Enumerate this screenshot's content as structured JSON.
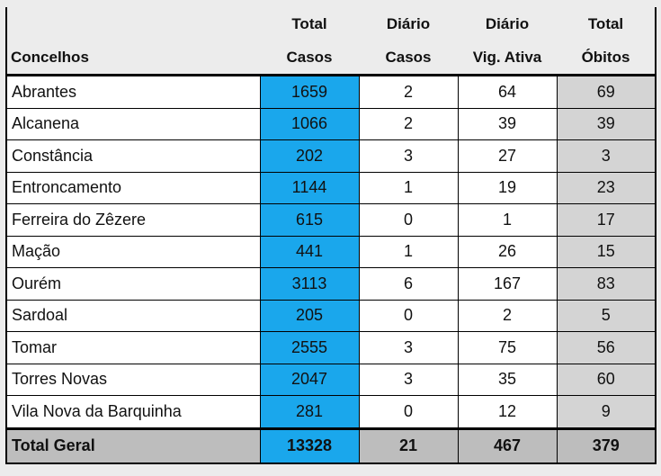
{
  "headers": {
    "row1": [
      "",
      "Total",
      "Diário",
      "Diário",
      "Total"
    ],
    "row2": [
      "Concelhos",
      "Casos",
      "Casos",
      "Vig. Ativa",
      "Óbitos"
    ]
  },
  "rows": [
    {
      "concelho": "Abrantes",
      "total_casos": "1659",
      "diario_casos": "2",
      "diario_vig": "64",
      "total_obitos": "69"
    },
    {
      "concelho": "Alcanena",
      "total_casos": "1066",
      "diario_casos": "2",
      "diario_vig": "39",
      "total_obitos": "39"
    },
    {
      "concelho": "Constância",
      "total_casos": "202",
      "diario_casos": "3",
      "diario_vig": "27",
      "total_obitos": "3"
    },
    {
      "concelho": "Entroncamento",
      "total_casos": "1144",
      "diario_casos": "1",
      "diario_vig": "19",
      "total_obitos": "23"
    },
    {
      "concelho": "Ferreira do Zêzere",
      "total_casos": "615",
      "diario_casos": "0",
      "diario_vig": "1",
      "total_obitos": "17"
    },
    {
      "concelho": "Mação",
      "total_casos": "441",
      "diario_casos": "1",
      "diario_vig": "26",
      "total_obitos": "15"
    },
    {
      "concelho": "Ourém",
      "total_casos": "3113",
      "diario_casos": "6",
      "diario_vig": "167",
      "total_obitos": "83"
    },
    {
      "concelho": "Sardoal",
      "total_casos": "205",
      "diario_casos": "0",
      "diario_vig": "2",
      "total_obitos": "5"
    },
    {
      "concelho": "Tomar",
      "total_casos": "2555",
      "diario_casos": "3",
      "diario_vig": "75",
      "total_obitos": "56"
    },
    {
      "concelho": "Torres Novas",
      "total_casos": "2047",
      "diario_casos": "3",
      "diario_vig": "35",
      "total_obitos": "60"
    },
    {
      "concelho": "Vila Nova da Barquinha",
      "total_casos": "281",
      "diario_casos": "0",
      "diario_vig": "12",
      "total_obitos": "9"
    }
  ],
  "total": {
    "label": "Total Geral",
    "total_casos": "13328",
    "diario_casos": "21",
    "diario_vig": "467",
    "total_obitos": "379"
  },
  "colors": {
    "total_casos_fill": "#1aa7ec",
    "obitos_fill": "#d4d4d4",
    "total_row_fill": "#bdbdbd",
    "background": "#ececec"
  }
}
